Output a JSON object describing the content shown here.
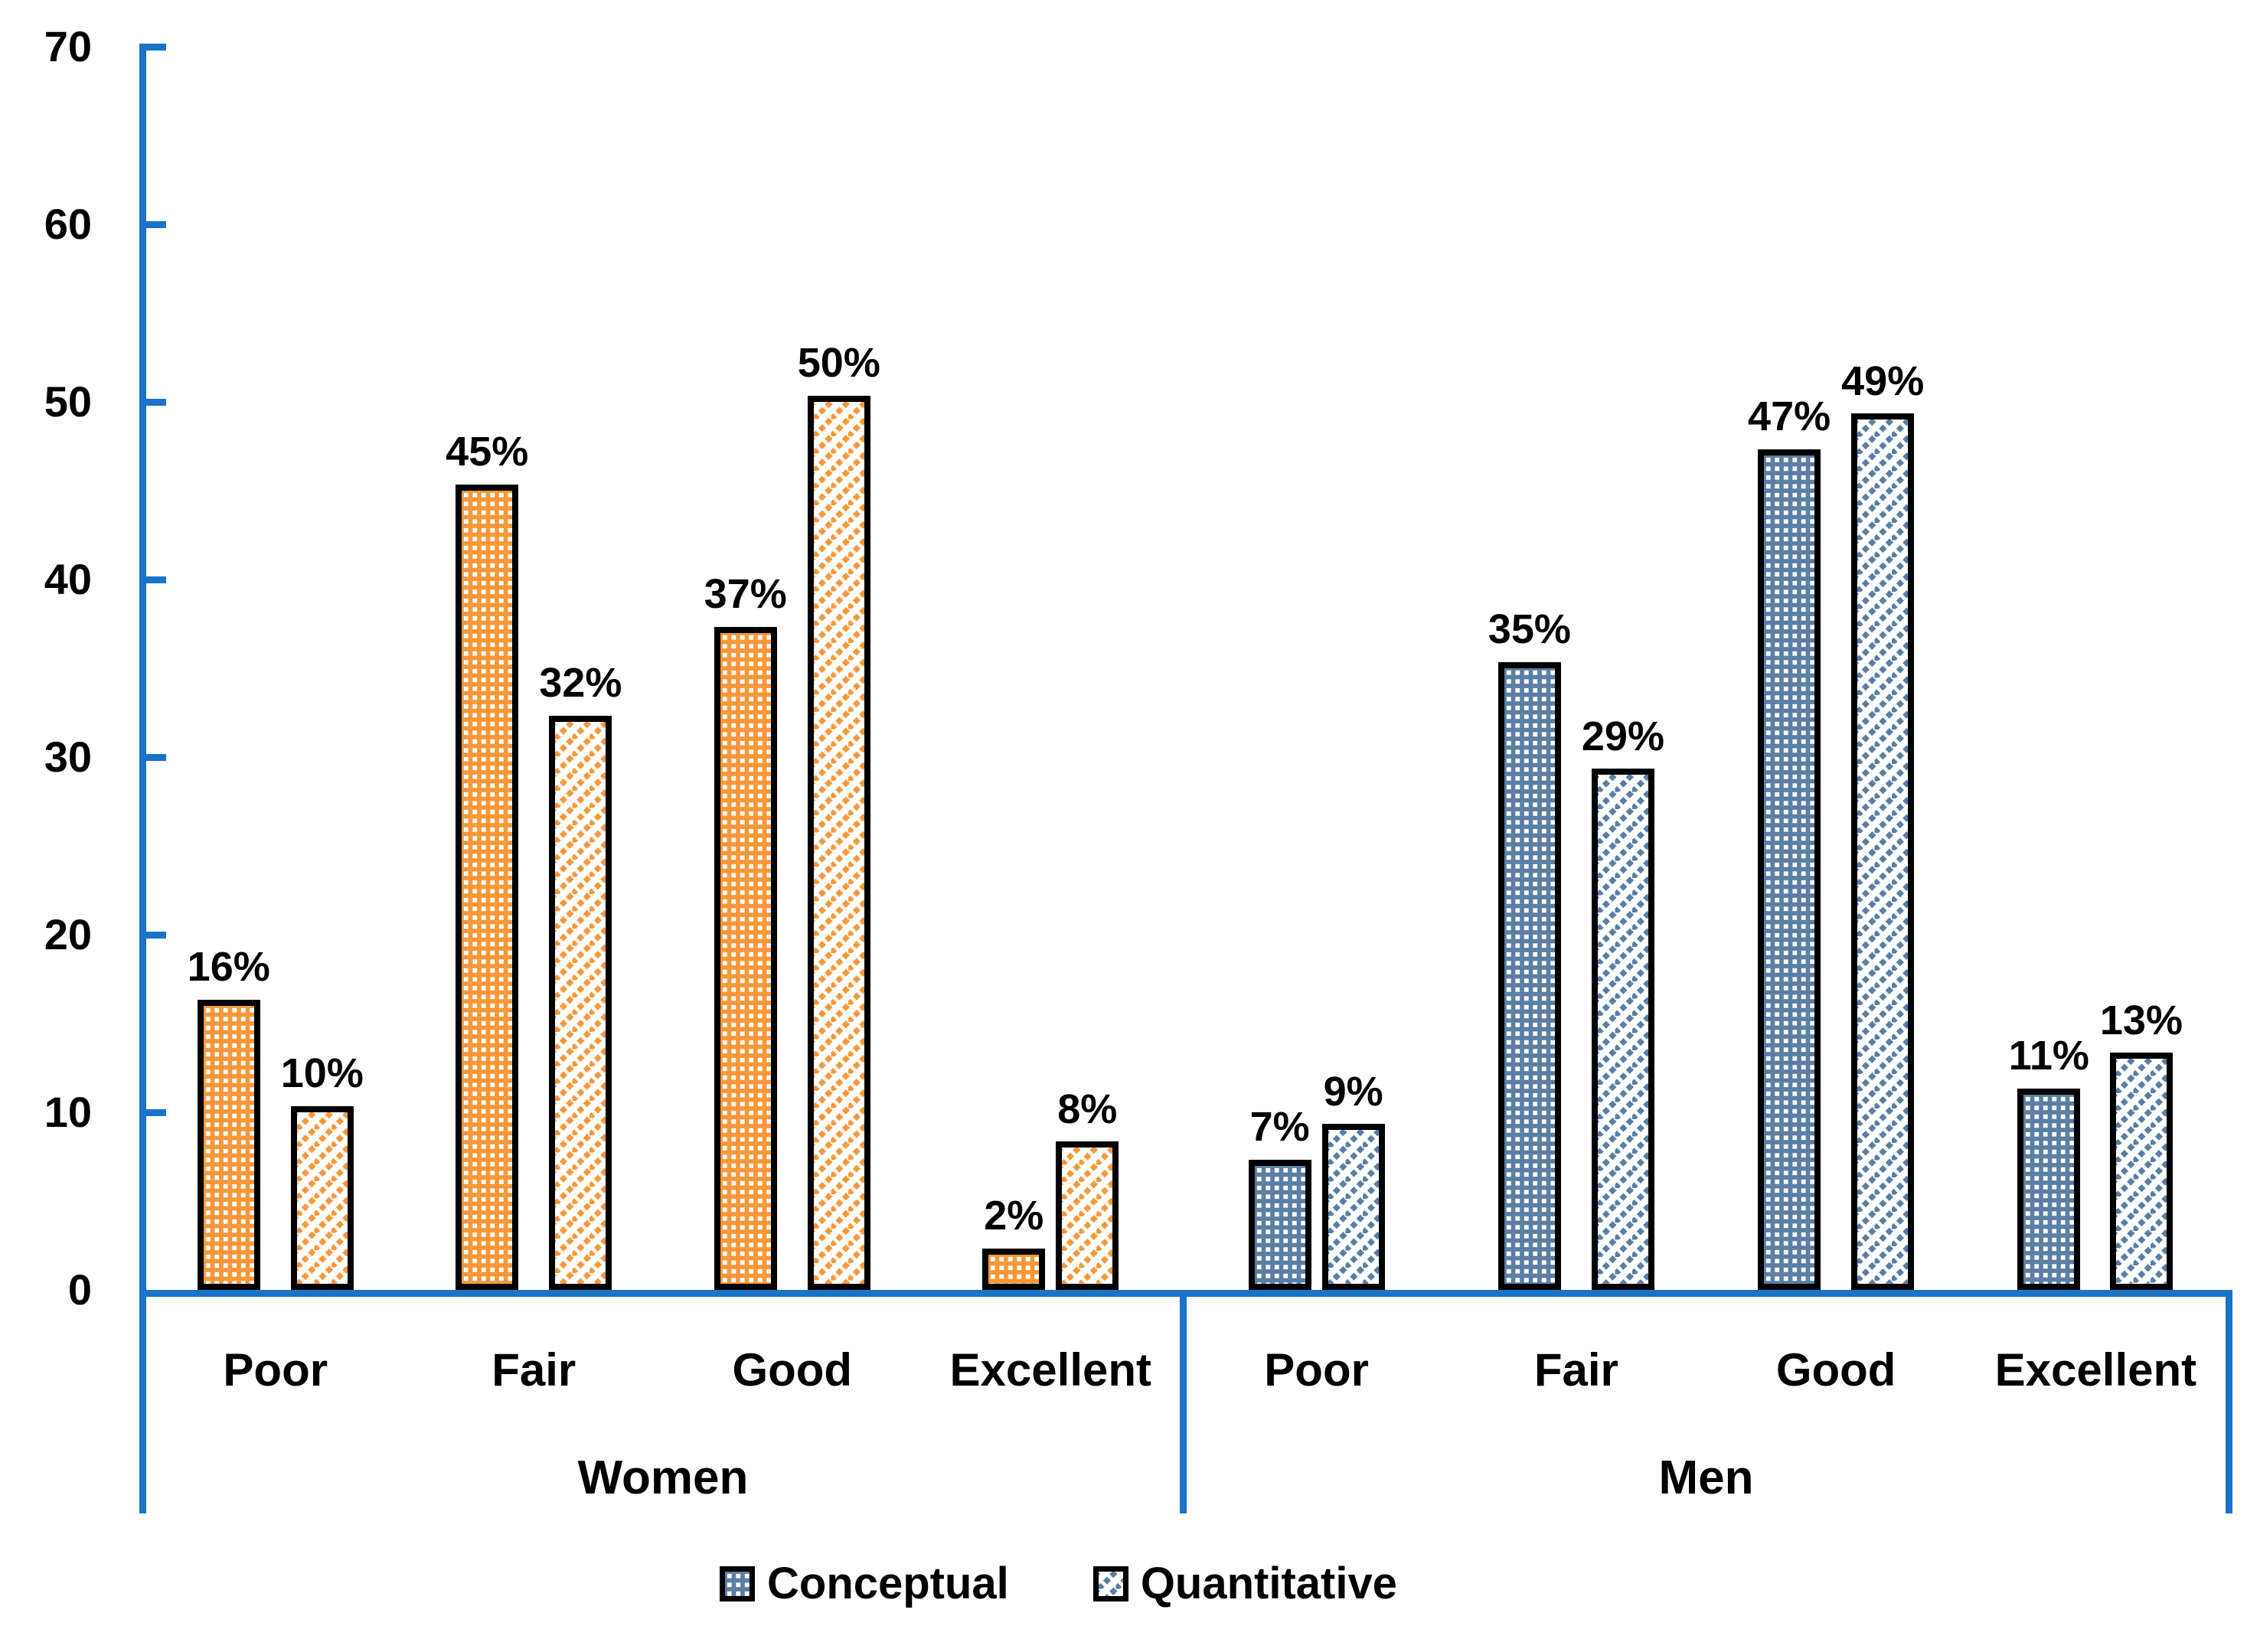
{
  "chart_data": {
    "type": "bar",
    "title": "",
    "xlabel": "",
    "ylabel": "",
    "ylim": [
      0,
      70
    ],
    "yticks": [
      0,
      10,
      20,
      30,
      40,
      50,
      60,
      70
    ],
    "grid": false,
    "value_suffix": "%",
    "axis_color": "#1973C8",
    "bar_outline_color": "#000000",
    "categories": [
      "Poor",
      "Fair",
      "Good",
      "Excellent"
    ],
    "groups": [
      {
        "label": "Women",
        "color": "#F8983A",
        "series": [
          {
            "name": "Conceptual",
            "pattern": "dot",
            "values": [
              16,
              45,
              37,
              2
            ]
          },
          {
            "name": "Quantitative",
            "pattern": "hatch",
            "values": [
              10,
              32,
              50,
              8
            ]
          }
        ]
      },
      {
        "label": "Men",
        "color": "#5B7EA4",
        "series": [
          {
            "name": "Conceptual",
            "pattern": "dot",
            "values": [
              7,
              35,
              47,
              11
            ]
          },
          {
            "name": "Quantitative",
            "pattern": "hatch",
            "values": [
              9,
              29,
              49,
              13
            ]
          }
        ]
      }
    ],
    "legend": {
      "position": "bottom",
      "swatch_color": "#5B7EA4",
      "entries": [
        {
          "label": "Conceptual",
          "pattern": "dot"
        },
        {
          "label": "Quantitative",
          "pattern": "hatch"
        }
      ]
    }
  }
}
